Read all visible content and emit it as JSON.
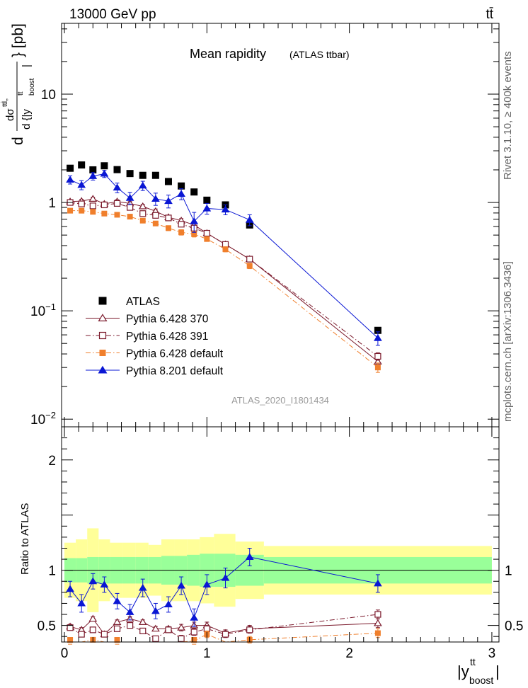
{
  "header": {
    "energy_label": "13000 GeV pp",
    "process_label": "tt̄",
    "title_main": "Mean rapidity",
    "title_sub": "(ATLAS ttbar)",
    "analysis_id": "ATLAS_2020_I1801434",
    "rivet_label": "Rivet 3.1.10, ≥ 400k events",
    "mcplots_label": "mcplots.cern.ch [arXiv:1306.3436]"
  },
  "axes": {
    "y_upper_label": "d dσ^{tt̄}/d {|y_boost^tt|} [pb]",
    "y_lower_label": "Ratio to ATLAS",
    "x_label": "|y_boost^tt|",
    "upper_ticks": [
      {
        "value": 0.01,
        "label": "10^-2"
      },
      {
        "value": 0.1,
        "label": "10^-1"
      },
      {
        "value": 1,
        "label": "1"
      },
      {
        "value": 10,
        "label": "10"
      }
    ],
    "lower_ticks": [
      {
        "value": 0.5,
        "label": "0.5"
      },
      {
        "value": 1,
        "label": "1"
      },
      {
        "value": 2,
        "label": "2"
      }
    ],
    "x_ticks": [
      {
        "value": 0,
        "label": "0"
      },
      {
        "value": 1,
        "label": "1"
      },
      {
        "value": 2,
        "label": "2"
      },
      {
        "value": 3,
        "label": "3"
      }
    ]
  },
  "chart_data": {
    "type": "line",
    "title": "Mean rapidity (ATLAS ttbar)",
    "xlabel": "|y_boost^tt|",
    "ylabel": "d dσ^tt / d {|y_boost^tt|} [pb]",
    "ratio_label": "Ratio to ATLAS",
    "xlim": [
      -0.02,
      3.05
    ],
    "ylim": [
      0.0085,
      45
    ],
    "yscale": "log",
    "ratio_ylim": [
      0.35,
      2.3
    ],
    "legend_position": "bottom-left",
    "x": [
      0.04,
      0.12,
      0.2,
      0.28,
      0.37,
      0.46,
      0.55,
      0.64,
      0.73,
      0.82,
      0.91,
      1.0,
      1.13,
      1.3,
      2.2
    ],
    "bin_edges": [
      0.0,
      0.08,
      0.16,
      0.24,
      0.32,
      0.41,
      0.5,
      0.59,
      0.68,
      0.77,
      0.86,
      0.95,
      1.05,
      1.2,
      1.4,
      3.0
    ],
    "series": [
      {
        "name": "ATLAS",
        "color": "#000000",
        "marker": "square-filled",
        "dash": "none",
        "line": false,
        "values": [
          2.07,
          2.22,
          2.0,
          2.18,
          2.01,
          1.85,
          1.78,
          1.78,
          1.56,
          1.42,
          1.25,
          1.05,
          0.95,
          0.62,
          0.066
        ],
        "errors": [
          0,
          0,
          0,
          0,
          0,
          0,
          0,
          0,
          0,
          0,
          0,
          0,
          0,
          0,
          0
        ],
        "ratio": [
          1,
          1,
          1,
          1,
          1,
          1,
          1,
          1,
          1,
          1,
          1,
          1,
          1,
          1,
          1
        ],
        "ratio_errors": [
          0,
          0,
          0,
          0,
          0,
          0,
          0,
          0,
          0,
          0,
          0,
          0,
          0,
          0,
          0
        ]
      },
      {
        "name": "Pythia 6.428 370",
        "color": "#7b1a2c",
        "marker": "triangle-open",
        "dash": "none",
        "line": true,
        "values": [
          1.02,
          1.03,
          1.08,
          0.97,
          1.02,
          0.98,
          0.92,
          0.83,
          0.73,
          0.68,
          0.62,
          0.52,
          0.41,
          0.3,
          0.034
        ],
        "errors": [
          0.04,
          0.04,
          0.04,
          0.04,
          0.04,
          0.04,
          0.04,
          0.04,
          0.03,
          0.03,
          0.03,
          0.02,
          0.02,
          0.015,
          0.003
        ],
        "ratio": [
          0.49,
          0.46,
          0.56,
          0.42,
          0.53,
          0.56,
          0.53,
          0.47,
          0.47,
          0.48,
          0.5,
          0.5,
          0.43,
          0.47,
          0.52
        ],
        "ratio_errors": [
          0.02,
          0.02,
          0.02,
          0.02,
          0.02,
          0.02,
          0.02,
          0.02,
          0.02,
          0.03,
          0.03,
          0.03,
          0.03,
          0.03,
          0.04
        ]
      },
      {
        "name": "Pythia 6.428 391",
        "color": "#7b1a2c",
        "marker": "square-open",
        "dash": "dash-dot",
        "line": true,
        "values": [
          1.0,
          0.97,
          0.93,
          0.95,
          0.98,
          0.9,
          0.79,
          0.76,
          0.72,
          0.63,
          0.58,
          0.52,
          0.41,
          0.3,
          0.038
        ],
        "errors": [
          0.04,
          0.04,
          0.04,
          0.04,
          0.04,
          0.04,
          0.04,
          0.04,
          0.03,
          0.03,
          0.03,
          0.02,
          0.02,
          0.015,
          0.003
        ],
        "ratio": [
          0.48,
          0.42,
          0.46,
          0.42,
          0.47,
          0.5,
          0.45,
          0.38,
          0.46,
          0.38,
          0.44,
          0.47,
          0.42,
          0.46,
          0.6
        ],
        "ratio_errors": [
          0.02,
          0.02,
          0.02,
          0.02,
          0.02,
          0.02,
          0.02,
          0.02,
          0.02,
          0.03,
          0.03,
          0.03,
          0.03,
          0.03,
          0.04
        ]
      },
      {
        "name": "Pythia 6.428 default",
        "color": "#f07f2c",
        "marker": "square-filled",
        "dash": "dash-dot",
        "line": true,
        "values": [
          0.84,
          0.84,
          0.82,
          0.79,
          0.77,
          0.74,
          0.68,
          0.64,
          0.58,
          0.53,
          0.51,
          0.46,
          0.37,
          0.26,
          0.03
        ],
        "errors": [
          0.03,
          0.03,
          0.03,
          0.03,
          0.03,
          0.03,
          0.03,
          0.03,
          0.03,
          0.03,
          0.03,
          0.02,
          0.02,
          0.015,
          0.003
        ],
        "ratio": [
          0.35,
          0.32,
          0.37,
          0.33,
          0.35,
          0.33,
          0.33,
          0.32,
          0.32,
          0.33,
          0.36,
          0.42,
          0.34,
          0.37,
          0.43
        ],
        "ratio_errors": [
          0.02,
          0.02,
          0.02,
          0.02,
          0.02,
          0.02,
          0.02,
          0.02,
          0.02,
          0.03,
          0.03,
          0.03,
          0.03,
          0.03,
          0.04
        ]
      },
      {
        "name": "Pythia 8.201 default",
        "color": "#0a17d4",
        "marker": "triangle-filled",
        "dash": "none",
        "line": true,
        "values": [
          1.62,
          1.45,
          1.75,
          1.84,
          1.37,
          1.1,
          1.43,
          1.08,
          1.03,
          1.2,
          0.67,
          0.88,
          0.86,
          0.69,
          0.056
        ],
        "errors": [
          0.14,
          0.14,
          0.14,
          0.14,
          0.14,
          0.14,
          0.14,
          0.14,
          0.14,
          0.14,
          0.14,
          0.1,
          0.09,
          0.08,
          0.008
        ],
        "ratio": [
          0.83,
          0.7,
          0.9,
          0.87,
          0.72,
          0.62,
          0.84,
          0.63,
          0.69,
          0.86,
          0.57,
          0.87,
          0.93,
          1.12,
          0.88
        ],
        "ratio_errors": [
          0.07,
          0.08,
          0.07,
          0.07,
          0.07,
          0.07,
          0.08,
          0.07,
          0.07,
          0.08,
          0.08,
          0.09,
          0.09,
          0.08,
          0.08
        ]
      }
    ],
    "uncertainty_bands": {
      "inner_color": "#99ff99",
      "outer_color": "#ffff99",
      "inner_lower": [
        0.89,
        0.89,
        0.88,
        0.88,
        0.88,
        0.88,
        0.88,
        0.88,
        0.87,
        0.87,
        0.86,
        0.85,
        0.85,
        0.86,
        0.88
      ],
      "inner_upper": [
        1.11,
        1.11,
        1.12,
        1.12,
        1.12,
        1.12,
        1.12,
        1.12,
        1.13,
        1.13,
        1.14,
        1.15,
        1.15,
        1.14,
        1.12
      ],
      "outer_lower": [
        0.75,
        0.72,
        0.62,
        0.72,
        0.75,
        0.75,
        0.75,
        0.77,
        0.72,
        0.72,
        0.72,
        0.7,
        0.67,
        0.74,
        0.78
      ],
      "outer_upper": [
        1.25,
        1.28,
        1.38,
        1.28,
        1.25,
        1.25,
        1.25,
        1.23,
        1.28,
        1.28,
        1.28,
        1.3,
        1.33,
        1.26,
        1.22
      ]
    }
  }
}
